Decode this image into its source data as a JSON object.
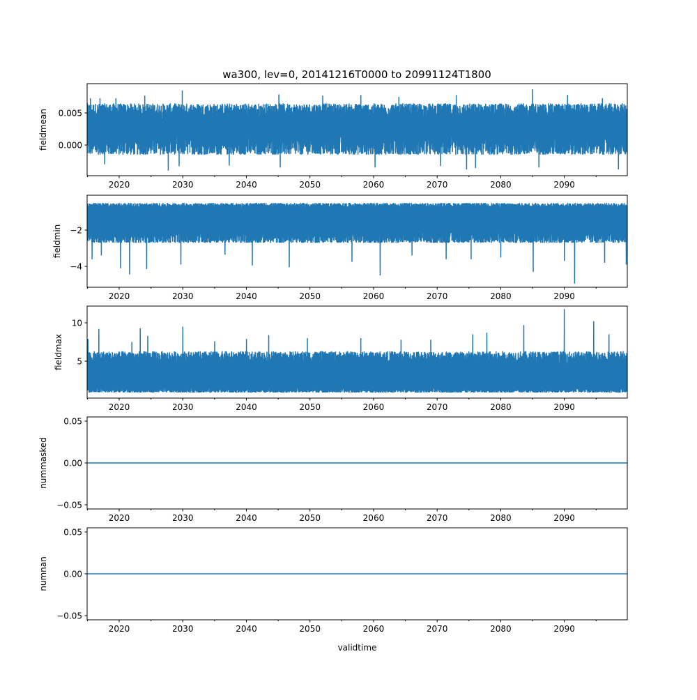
{
  "chart_data": [
    {
      "type": "line",
      "title": "wa300, lev=0, 20141216T0000 to 20991124T1800",
      "ylabel": "fieldmean",
      "xlabel": "",
      "xlim": [
        2014.96,
        2099.9
      ],
      "ylim": [
        -0.00478,
        0.00957
      ],
      "yticks": [
        {
          "v": 0.005,
          "label": "0.005"
        },
        {
          "v": 0.0,
          "label": "0.000"
        }
      ],
      "band": {
        "low": [
          -0.0015,
          0.0015
        ],
        "high": [
          0.004,
          0.0065
        ]
      },
      "spikes_high": [
        [
          2015.5,
          0.0073
        ],
        [
          2017,
          0.0073
        ],
        [
          2019.5,
          0.0073
        ],
        [
          2024,
          0.0077
        ],
        [
          2029.9,
          0.0085
        ],
        [
          2037.3,
          0.0076
        ],
        [
          2045.1,
          0.0079
        ],
        [
          2052,
          0.0077
        ],
        [
          2058,
          0.0078
        ],
        [
          2064,
          0.0075
        ],
        [
          2073,
          0.0078
        ],
        [
          2085,
          0.0087
        ],
        [
          2090.5,
          0.0078
        ],
        [
          2096,
          0.0073
        ]
      ],
      "spikes_low": [
        [
          2017.7,
          -0.003
        ],
        [
          2027.7,
          -0.004
        ],
        [
          2029.4,
          -0.0033
        ],
        [
          2037.3,
          -0.0032
        ],
        [
          2045.3,
          -0.0035
        ],
        [
          2060.2,
          -0.0035
        ],
        [
          2070.5,
          -0.0033
        ],
        [
          2074.6,
          -0.0038
        ],
        [
          2076,
          -0.0036
        ],
        [
          2086,
          -0.0035
        ],
        [
          2098.5,
          -0.0038
        ]
      ]
    },
    {
      "type": "line",
      "ylabel": "fieldmin",
      "xlabel": "",
      "xlim": [
        2014.96,
        2099.9
      ],
      "ylim": [
        -5.15,
        -0.077
      ],
      "yticks": [
        {
          "v": -2,
          "label": "−2"
        },
        {
          "v": -4,
          "label": "−4"
        }
      ],
      "band": {
        "low": [
          -2.7,
          -2.1
        ],
        "high": [
          -0.8,
          -0.5
        ]
      },
      "spikes_high": [],
      "spikes_low": [
        [
          2015.7,
          -3.6
        ],
        [
          2017.2,
          -3.4
        ],
        [
          2020.2,
          -4.1
        ],
        [
          2021.6,
          -4.45
        ],
        [
          2024.3,
          -4.15
        ],
        [
          2029.7,
          -3.9
        ],
        [
          2036.6,
          -3.35
        ],
        [
          2040.9,
          -3.95
        ],
        [
          2046.7,
          -4.05
        ],
        [
          2056.6,
          -3.75
        ],
        [
          2061,
          -4.5
        ],
        [
          2066,
          -3.4
        ],
        [
          2071.4,
          -3.6
        ],
        [
          2075.3,
          -3.6
        ],
        [
          2080,
          -3.5
        ],
        [
          2085.1,
          -4.3
        ],
        [
          2090,
          -3.7
        ],
        [
          2091.6,
          -4.95
        ],
        [
          2096.3,
          -3.8
        ],
        [
          2099.7,
          -3.9
        ]
      ]
    },
    {
      "type": "line",
      "ylabel": "fieldmax",
      "xlabel": "",
      "xlim": [
        2014.96,
        2099.9
      ],
      "ylim": [
        0.18,
        12.18
      ],
      "yticks": [
        {
          "v": 10,
          "label": "10"
        },
        {
          "v": 5,
          "label": "5"
        }
      ],
      "band": {
        "low": [
          0.9,
          1.5
        ],
        "high": [
          4.5,
          6.3
        ]
      },
      "spikes_high": [
        [
          2015.1,
          7.9
        ],
        [
          2016.8,
          9.2
        ],
        [
          2022,
          7.5
        ],
        [
          2023.3,
          9.3
        ],
        [
          2024.5,
          8.3
        ],
        [
          2030,
          9.5
        ],
        [
          2035,
          7.6
        ],
        [
          2040,
          7.9
        ],
        [
          2043.5,
          8.4
        ],
        [
          2049.6,
          8.0
        ],
        [
          2058,
          8.0
        ],
        [
          2064.3,
          7.8
        ],
        [
          2069,
          7.8
        ],
        [
          2075.6,
          8.5
        ],
        [
          2077.8,
          8.7
        ],
        [
          2083.6,
          9.7
        ],
        [
          2090,
          11.8
        ],
        [
          2094.6,
          10.2
        ],
        [
          2097,
          8.5
        ]
      ],
      "spikes_low": []
    },
    {
      "type": "line",
      "ylabel": "nummasked",
      "xlabel": "",
      "xlim": [
        2014.96,
        2099.9
      ],
      "ylim": [
        -0.055,
        0.055
      ],
      "yticks": [
        {
          "v": 0.05,
          "label": "0.05"
        },
        {
          "v": 0.0,
          "label": "0.00"
        },
        {
          "v": -0.05,
          "label": "−0.05"
        }
      ],
      "constant": 0
    },
    {
      "type": "line",
      "ylabel": "numnan",
      "xlabel": "validtime",
      "xlim": [
        2014.96,
        2099.9
      ],
      "ylim": [
        -0.055,
        0.055
      ],
      "yticks": [
        {
          "v": 0.05,
          "label": "0.05"
        },
        {
          "v": 0.0,
          "label": "0.00"
        },
        {
          "v": -0.05,
          "label": "−0.05"
        }
      ],
      "constant": 0
    }
  ],
  "xticks": [
    "2020",
    "2030",
    "2040",
    "2050",
    "2060",
    "2070",
    "2080",
    "2090"
  ],
  "xtick_values": [
    2020,
    2030,
    2040,
    2050,
    2060,
    2070,
    2080,
    2090
  ],
  "line_color": "#1f77b4"
}
